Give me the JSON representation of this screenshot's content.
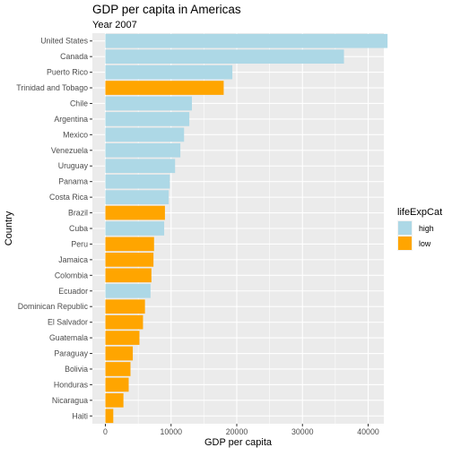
{
  "chart_data": {
    "type": "bar",
    "orientation": "horizontal",
    "title": "GDP per capita in Americas",
    "subtitle": "Year 2007",
    "xlabel": "GDP per capita",
    "ylabel": "Country",
    "xlim": [
      0,
      45000
    ],
    "xticks": [
      0,
      10000,
      20000,
      30000,
      40000
    ],
    "xtick_labels": [
      "0",
      "10000",
      "20000",
      "30000",
      "40000"
    ],
    "grid": true,
    "legend": {
      "title": "lifeExpCat",
      "placement": "right",
      "entries": [
        {
          "label": "high",
          "color": "#add8e6"
        },
        {
          "label": "low",
          "color": "#ffa500"
        }
      ]
    },
    "categories": [
      "United States",
      "Canada",
      "Puerto Rico",
      "Trinidad and Tobago",
      "Chile",
      "Argentina",
      "Mexico",
      "Venezuela",
      "Uruguay",
      "Panama",
      "Costa Rica",
      "Brazil",
      "Cuba",
      "Peru",
      "Jamaica",
      "Colombia",
      "Ecuador",
      "Dominican Republic",
      "El Salvador",
      "Guatemala",
      "Paraguay",
      "Bolivia",
      "Honduras",
      "Nicaragua",
      "Haiti"
    ],
    "values": [
      42952,
      36319,
      19329,
      18009,
      13172,
      12779,
      11978,
      11416,
      10611,
      9809,
      9645,
      9066,
      8948,
      7409,
      7321,
      7007,
      6873,
      6025,
      5728,
      5186,
      4173,
      3822,
      3548,
      2749,
      1202
    ],
    "groups": [
      "high",
      "high",
      "high",
      "low",
      "high",
      "high",
      "high",
      "high",
      "high",
      "high",
      "high",
      "low",
      "high",
      "low",
      "low",
      "low",
      "high",
      "low",
      "low",
      "low",
      "low",
      "low",
      "low",
      "low",
      "low"
    ]
  }
}
